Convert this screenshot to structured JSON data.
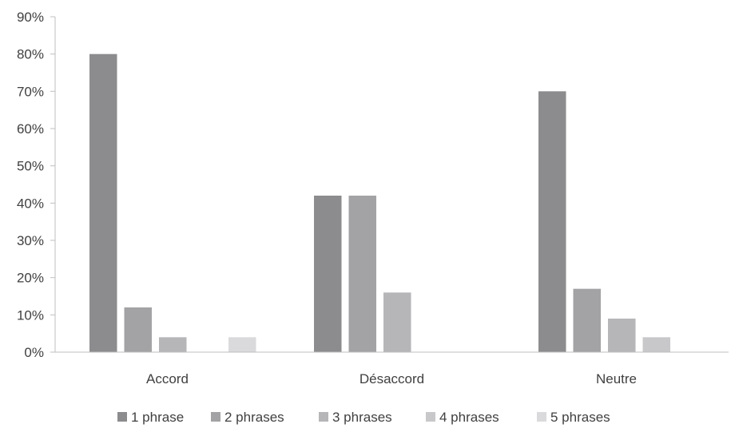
{
  "chart_data": {
    "type": "bar",
    "categories": [
      "Accord",
      "Désaccord",
      "Neutre"
    ],
    "series": [
      {
        "name": "1 phrase",
        "values": [
          80,
          42,
          70
        ],
        "color": "#8c8c8e"
      },
      {
        "name": "2 phrases",
        "values": [
          12,
          42,
          17
        ],
        "color": "#a3a3a5"
      },
      {
        "name": "3 phrases",
        "values": [
          4,
          16,
          9
        ],
        "color": "#b6b6b8"
      },
      {
        "name": "4 phrases",
        "values": [
          0,
          0,
          4
        ],
        "color": "#c8c8ca"
      },
      {
        "name": "5 phrases",
        "values": [
          4,
          0,
          0
        ],
        "color": "#dadadc"
      }
    ],
    "y_ticks": [
      "0%",
      "10%",
      "20%",
      "30%",
      "40%",
      "50%",
      "60%",
      "70%",
      "80%",
      "90%"
    ],
    "ylim": [
      0,
      90
    ],
    "unit": "%",
    "grid": false,
    "legend_position": "bottom"
  }
}
